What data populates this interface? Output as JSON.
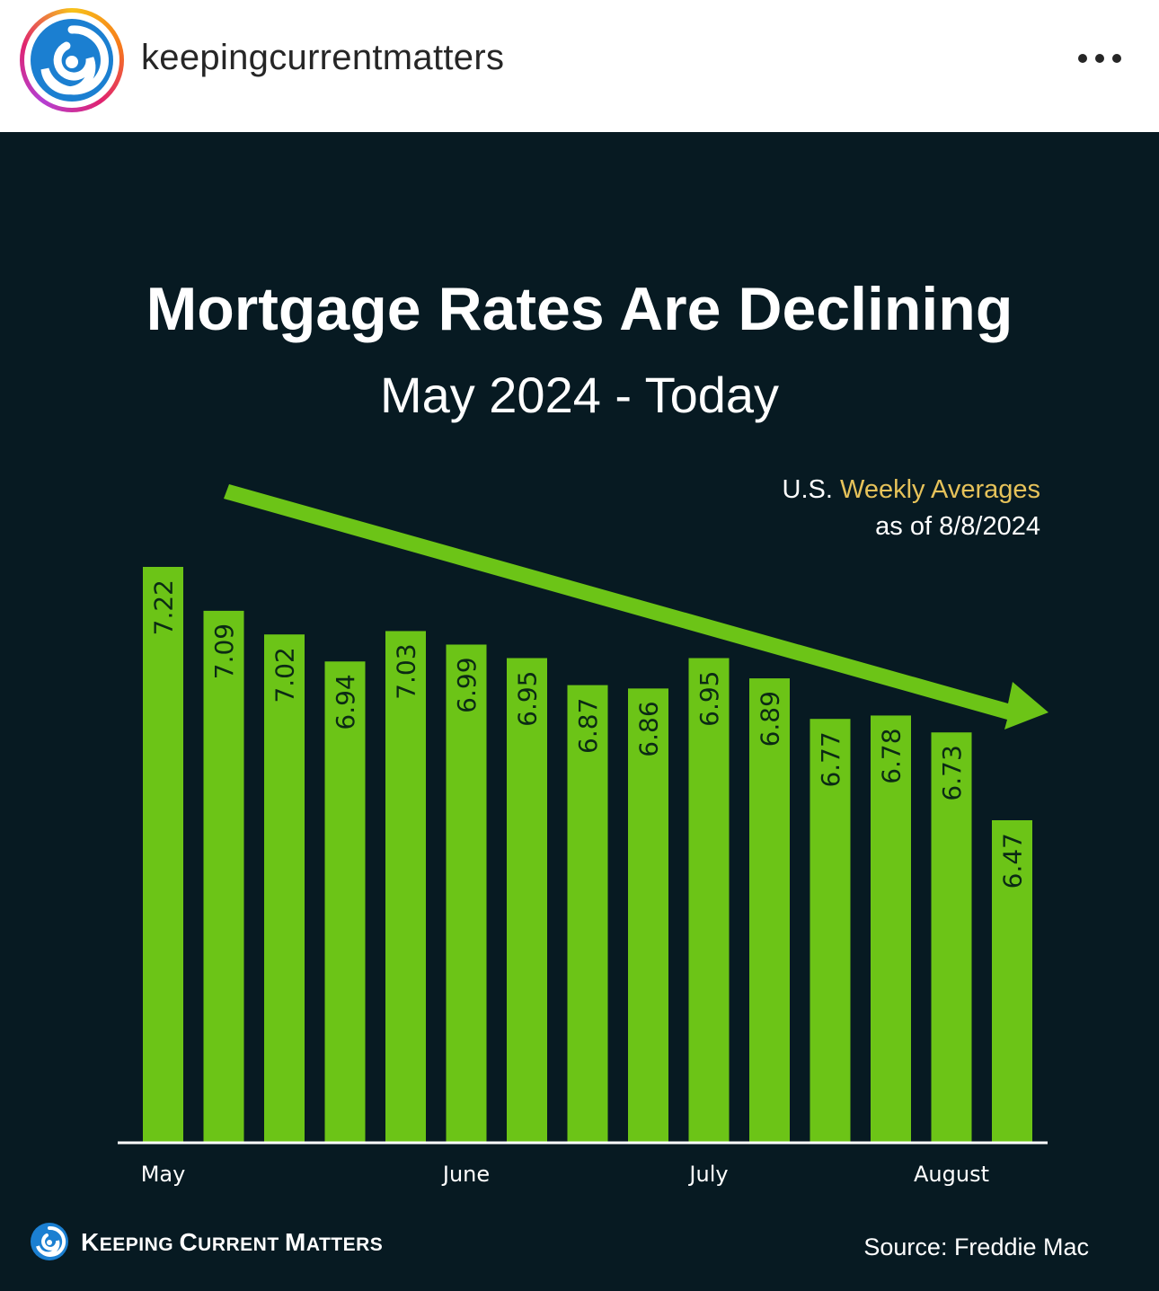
{
  "header": {
    "username": "keepingcurrentmatters",
    "avatar_icon": "spiral-logo-icon",
    "more_icon": "more-options-icon"
  },
  "post": {
    "title": "Mortgage Rates Are Declining",
    "subtitle": "May 2024 - Today",
    "note_prefix": "U.S.",
    "note_highlight": "Weekly Averages",
    "note_line2": "as of 8/8/2024",
    "brand_k": "K",
    "brand_eeping": "EEPING ",
    "brand_c": "C",
    "brand_urrent": "URRENT ",
    "brand_m": "M",
    "brand_atters": "ATTERS",
    "source": "Source: Freddie Mac"
  },
  "colors": {
    "background": "#071a22",
    "bar": "#6cc417",
    "arrow": "#6cc417",
    "highlight": "#e6c25a"
  },
  "chart_data": {
    "type": "bar",
    "title": "Mortgage Rates Are Declining",
    "subtitle": "May 2024 - Today",
    "values": [
      7.22,
      7.09,
      7.02,
      6.94,
      7.03,
      6.99,
      6.95,
      6.87,
      6.86,
      6.95,
      6.89,
      6.77,
      6.78,
      6.73,
      6.47
    ],
    "labels": [
      "7.22",
      "7.09",
      "7.02",
      "6.94",
      "7.03",
      "6.99",
      "6.95",
      "6.87",
      "6.86",
      "6.95",
      "6.89",
      "6.77",
      "6.78",
      "6.73",
      "6.47"
    ],
    "month_labels": [
      {
        "label": "May",
        "bar_index": 0
      },
      {
        "label": "June",
        "bar_index": 5
      },
      {
        "label": "July",
        "bar_index": 9
      },
      {
        "label": "August",
        "bar_index": 13
      }
    ],
    "trend_arrow": "decreasing",
    "grid": false
  }
}
